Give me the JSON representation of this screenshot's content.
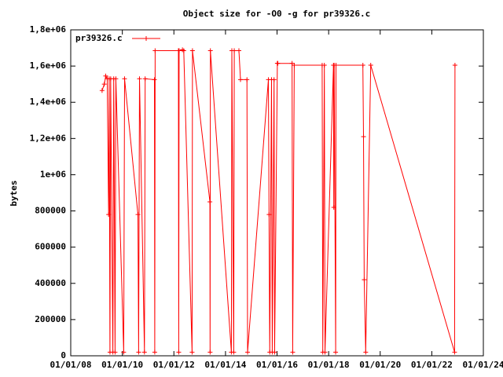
{
  "chart_data": {
    "type": "line",
    "title": "Object size for -O0 -g for pr39326.c",
    "ylabel": "bytes",
    "series": [
      {
        "name": "pr39326.c",
        "color": "#ff0000",
        "x": [
          "2009-03-20",
          "2009-04-20",
          "2009-05-10",
          "2009-06-01",
          "2009-06-20",
          "2009-06-28",
          "2009-07-10",
          "2009-07-20",
          "2009-08-20",
          "2009-09-01",
          "2009-09-20",
          "2009-10-01",
          "2010-01-20",
          "2010-02-01",
          "2010-08-10",
          "2010-08-20",
          "2010-09-01",
          "2010-11-10",
          "2010-11-20",
          "2011-04-01",
          "2011-04-05",
          "2011-04-10",
          "2012-03-05",
          "2012-03-10",
          "2012-03-15",
          "2012-05-01",
          "2012-05-20",
          "2012-09-15",
          "2012-09-20",
          "2013-05-25",
          "2013-05-28",
          "2013-06-01",
          "2014-03-25",
          "2014-04-01",
          "2014-04-28",
          "2014-05-05",
          "2014-07-10",
          "2014-08-01",
          "2014-11-01",
          "2014-11-10",
          "2015-09-01",
          "2015-09-10",
          "2015-09-20",
          "2015-10-15",
          "2015-10-25",
          "2015-11-20",
          "2015-11-28",
          "2016-01-05",
          "2016-01-12",
          "2016-08-01",
          "2016-08-10",
          "2016-09-01",
          "2017-10-01",
          "2017-10-10",
          "2017-11-01",
          "2017-11-10",
          "2018-03-10",
          "2018-03-15",
          "2018-03-20",
          "2018-04-10",
          "2018-04-15",
          "2019-05-01",
          "2019-05-10",
          "2019-05-20",
          "2019-06-10",
          "2019-08-20",
          "2022-11-20",
          "2022-11-25"
        ],
        "values": [
          1465000,
          1500000,
          1545000,
          1530000,
          780000,
          1530000,
          20000,
          1530000,
          20000,
          1530000,
          20000,
          1530000,
          20000,
          1530000,
          780000,
          20000,
          1530000,
          20000,
          1530000,
          1525000,
          20000,
          1685000,
          1685000,
          20000,
          1685000,
          1690000,
          1685000,
          20000,
          1685000,
          850000,
          20000,
          1685000,
          20000,
          1685000,
          20000,
          1685000,
          1685000,
          1525000,
          1525000,
          20000,
          1525000,
          780000,
          20000,
          1525000,
          20000,
          1525000,
          20000,
          1615000,
          1615000,
          1615000,
          20000,
          1605000,
          1605000,
          20000,
          1605000,
          20000,
          1605000,
          820000,
          1605000,
          20000,
          1605000,
          1605000,
          1210000,
          420000,
          20000,
          1605000,
          20000,
          1605000
        ]
      }
    ],
    "xlim": [
      "2008-01-01",
      "2024-01-01"
    ],
    "xticks": [
      {
        "value": "2008-01-01",
        "label": "01/01/08"
      },
      {
        "value": "2010-01-01",
        "label": "01/01/10"
      },
      {
        "value": "2012-01-01",
        "label": "01/01/12"
      },
      {
        "value": "2014-01-01",
        "label": "01/01/14"
      },
      {
        "value": "2016-01-01",
        "label": "01/01/16"
      },
      {
        "value": "2018-01-01",
        "label": "01/01/18"
      },
      {
        "value": "2020-01-01",
        "label": "01/01/20"
      },
      {
        "value": "2022-01-01",
        "label": "01/01/22"
      },
      {
        "value": "2024-01-01",
        "label": "01/01/24"
      }
    ],
    "ylim": [
      0,
      1800000
    ],
    "yticks": [
      0,
      200000,
      400000,
      600000,
      800000,
      {
        "value": 1000000,
        "label": "1e+06"
      },
      {
        "value": 1200000,
        "label": "1,2e+06"
      },
      {
        "value": 1400000,
        "label": "1,4e+06"
      },
      {
        "value": 1600000,
        "label": "1,6e+06"
      },
      {
        "value": 1800000,
        "label": "1,8e+06"
      }
    ],
    "legend": "top-left",
    "grid": false
  }
}
